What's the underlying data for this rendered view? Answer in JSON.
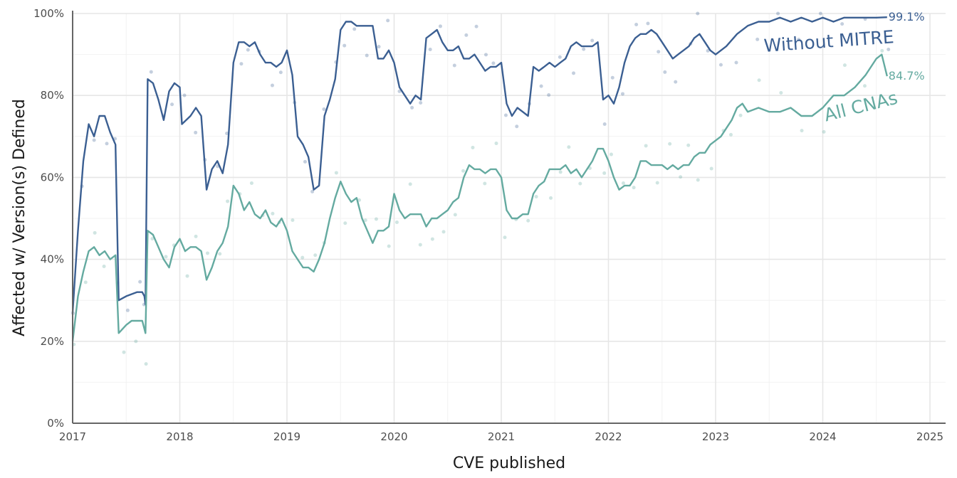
{
  "chart_data": {
    "type": "line",
    "xlabel": "CVE published",
    "ylabel": "Affected w/ Version(s) Defined",
    "xlim": [
      2017,
      2025.2
    ],
    "ylim": [
      0,
      100
    ],
    "x_ticks": [
      "2017",
      "2018",
      "2019",
      "2020",
      "2021",
      "2022",
      "2023",
      "2024",
      "2025"
    ],
    "y_ticks": [
      "0%",
      "20%",
      "40%",
      "60%",
      "80%",
      "100%"
    ],
    "grid": true,
    "legend": "direct labels at line ends",
    "series": [
      {
        "name": "Without MITRE",
        "end_label": "99.1%",
        "color": "#3b5f92",
        "points": [
          [
            2017.0,
            27
          ],
          [
            2017.05,
            47
          ],
          [
            2017.1,
            64
          ],
          [
            2017.15,
            73
          ],
          [
            2017.2,
            70
          ],
          [
            2017.25,
            75
          ],
          [
            2017.3,
            75
          ],
          [
            2017.35,
            71
          ],
          [
            2017.4,
            68
          ],
          [
            2017.43,
            30
          ],
          [
            2017.5,
            31
          ],
          [
            2017.6,
            32
          ],
          [
            2017.65,
            32
          ],
          [
            2017.67,
            31
          ],
          [
            2017.68,
            29
          ],
          [
            2017.7,
            84
          ],
          [
            2017.75,
            83
          ],
          [
            2017.8,
            79
          ],
          [
            2017.85,
            74
          ],
          [
            2017.9,
            81
          ],
          [
            2017.95,
            83
          ],
          [
            2018.0,
            82
          ],
          [
            2018.02,
            73
          ],
          [
            2018.1,
            75
          ],
          [
            2018.15,
            77
          ],
          [
            2018.2,
            75
          ],
          [
            2018.25,
            57
          ],
          [
            2018.3,
            62
          ],
          [
            2018.35,
            64
          ],
          [
            2018.4,
            61
          ],
          [
            2018.45,
            68
          ],
          [
            2018.5,
            88
          ],
          [
            2018.55,
            93
          ],
          [
            2018.6,
            93
          ],
          [
            2018.65,
            92
          ],
          [
            2018.7,
            93
          ],
          [
            2018.75,
            90
          ],
          [
            2018.8,
            88
          ],
          [
            2018.85,
            88
          ],
          [
            2018.9,
            87
          ],
          [
            2018.95,
            88
          ],
          [
            2019.0,
            91
          ],
          [
            2019.05,
            85
          ],
          [
            2019.1,
            70
          ],
          [
            2019.15,
            68
          ],
          [
            2019.2,
            65
          ],
          [
            2019.25,
            57
          ],
          [
            2019.3,
            58
          ],
          [
            2019.35,
            75
          ],
          [
            2019.4,
            79
          ],
          [
            2019.45,
            84
          ],
          [
            2019.5,
            96
          ],
          [
            2019.55,
            98
          ],
          [
            2019.6,
            98
          ],
          [
            2019.65,
            97
          ],
          [
            2019.7,
            97
          ],
          [
            2019.75,
            97
          ],
          [
            2019.8,
            97
          ],
          [
            2019.85,
            89
          ],
          [
            2019.9,
            89
          ],
          [
            2019.95,
            91
          ],
          [
            2020.0,
            88
          ],
          [
            2020.05,
            82
          ],
          [
            2020.1,
            80
          ],
          [
            2020.15,
            78
          ],
          [
            2020.2,
            80
          ],
          [
            2020.25,
            79
          ],
          [
            2020.3,
            94
          ],
          [
            2020.35,
            95
          ],
          [
            2020.4,
            96
          ],
          [
            2020.45,
            93
          ],
          [
            2020.5,
            91
          ],
          [
            2020.55,
            91
          ],
          [
            2020.6,
            92
          ],
          [
            2020.65,
            89
          ],
          [
            2020.7,
            89
          ],
          [
            2020.75,
            90
          ],
          [
            2020.8,
            88
          ],
          [
            2020.85,
            86
          ],
          [
            2020.9,
            87
          ],
          [
            2020.95,
            87
          ],
          [
            2021.0,
            88
          ],
          [
            2021.05,
            78
          ],
          [
            2021.1,
            75
          ],
          [
            2021.15,
            77
          ],
          [
            2021.2,
            76
          ],
          [
            2021.25,
            75
          ],
          [
            2021.3,
            87
          ],
          [
            2021.35,
            86
          ],
          [
            2021.4,
            87
          ],
          [
            2021.45,
            88
          ],
          [
            2021.5,
            87
          ],
          [
            2021.55,
            88
          ],
          [
            2021.6,
            89
          ],
          [
            2021.65,
            92
          ],
          [
            2021.7,
            93
          ],
          [
            2021.75,
            92
          ],
          [
            2021.8,
            92
          ],
          [
            2021.85,
            92
          ],
          [
            2021.9,
            93
          ],
          [
            2021.95,
            79
          ],
          [
            2022.0,
            80
          ],
          [
            2022.05,
            78
          ],
          [
            2022.1,
            82
          ],
          [
            2022.15,
            88
          ],
          [
            2022.2,
            92
          ],
          [
            2022.25,
            94
          ],
          [
            2022.3,
            95
          ],
          [
            2022.35,
            95
          ],
          [
            2022.4,
            96
          ],
          [
            2022.45,
            95
          ],
          [
            2022.5,
            93
          ],
          [
            2022.55,
            91
          ],
          [
            2022.6,
            89
          ],
          [
            2022.65,
            90
          ],
          [
            2022.7,
            91
          ],
          [
            2022.75,
            92
          ],
          [
            2022.8,
            94
          ],
          [
            2022.85,
            95
          ],
          [
            2022.9,
            93
          ],
          [
            2022.95,
            91
          ],
          [
            2023.0,
            90
          ],
          [
            2023.05,
            91
          ],
          [
            2023.1,
            92
          ],
          [
            2023.2,
            95
          ],
          [
            2023.3,
            97
          ],
          [
            2023.4,
            98
          ],
          [
            2023.5,
            98
          ],
          [
            2023.6,
            99
          ],
          [
            2023.7,
            98
          ],
          [
            2023.8,
            99
          ],
          [
            2023.9,
            98
          ],
          [
            2024.0,
            99
          ],
          [
            2024.1,
            98
          ],
          [
            2024.2,
            99
          ],
          [
            2024.3,
            99
          ],
          [
            2024.4,
            99
          ],
          [
            2024.5,
            99
          ],
          [
            2024.6,
            99.1
          ]
        ]
      },
      {
        "name": "All CNAs",
        "end_label": "84.7%",
        "color": "#64aaa0",
        "points": [
          [
            2017.0,
            20
          ],
          [
            2017.05,
            31
          ],
          [
            2017.1,
            37
          ],
          [
            2017.15,
            42
          ],
          [
            2017.2,
            43
          ],
          [
            2017.25,
            41
          ],
          [
            2017.3,
            42
          ],
          [
            2017.35,
            40
          ],
          [
            2017.4,
            41
          ],
          [
            2017.43,
            22
          ],
          [
            2017.5,
            24
          ],
          [
            2017.55,
            25
          ],
          [
            2017.6,
            25
          ],
          [
            2017.65,
            25
          ],
          [
            2017.68,
            22
          ],
          [
            2017.7,
            47
          ],
          [
            2017.75,
            46
          ],
          [
            2017.8,
            43
          ],
          [
            2017.85,
            40
          ],
          [
            2017.9,
            38
          ],
          [
            2017.95,
            43
          ],
          [
            2018.0,
            45
          ],
          [
            2018.05,
            42
          ],
          [
            2018.1,
            43
          ],
          [
            2018.15,
            43
          ],
          [
            2018.2,
            42
          ],
          [
            2018.25,
            35
          ],
          [
            2018.3,
            38
          ],
          [
            2018.35,
            42
          ],
          [
            2018.4,
            44
          ],
          [
            2018.45,
            48
          ],
          [
            2018.5,
            58
          ],
          [
            2018.55,
            56
          ],
          [
            2018.6,
            52
          ],
          [
            2018.65,
            54
          ],
          [
            2018.7,
            51
          ],
          [
            2018.75,
            50
          ],
          [
            2018.8,
            52
          ],
          [
            2018.85,
            49
          ],
          [
            2018.9,
            48
          ],
          [
            2018.95,
            50
          ],
          [
            2019.0,
            47
          ],
          [
            2019.05,
            42
          ],
          [
            2019.1,
            40
          ],
          [
            2019.15,
            38
          ],
          [
            2019.2,
            38
          ],
          [
            2019.25,
            37
          ],
          [
            2019.3,
            40
          ],
          [
            2019.35,
            44
          ],
          [
            2019.4,
            50
          ],
          [
            2019.45,
            55
          ],
          [
            2019.5,
            59
          ],
          [
            2019.55,
            56
          ],
          [
            2019.6,
            54
          ],
          [
            2019.65,
            55
          ],
          [
            2019.7,
            50
          ],
          [
            2019.75,
            47
          ],
          [
            2019.8,
            44
          ],
          [
            2019.85,
            47
          ],
          [
            2019.9,
            47
          ],
          [
            2019.95,
            48
          ],
          [
            2020.0,
            56
          ],
          [
            2020.05,
            52
          ],
          [
            2020.1,
            50
          ],
          [
            2020.15,
            51
          ],
          [
            2020.2,
            51
          ],
          [
            2020.25,
            51
          ],
          [
            2020.3,
            48
          ],
          [
            2020.35,
            50
          ],
          [
            2020.4,
            50
          ],
          [
            2020.45,
            51
          ],
          [
            2020.5,
            52
          ],
          [
            2020.55,
            54
          ],
          [
            2020.6,
            55
          ],
          [
            2020.65,
            60
          ],
          [
            2020.7,
            63
          ],
          [
            2020.75,
            62
          ],
          [
            2020.8,
            62
          ],
          [
            2020.85,
            61
          ],
          [
            2020.9,
            62
          ],
          [
            2020.95,
            62
          ],
          [
            2021.0,
            60
          ],
          [
            2021.05,
            52
          ],
          [
            2021.1,
            50
          ],
          [
            2021.15,
            50
          ],
          [
            2021.2,
            51
          ],
          [
            2021.25,
            51
          ],
          [
            2021.3,
            56
          ],
          [
            2021.35,
            58
          ],
          [
            2021.4,
            59
          ],
          [
            2021.45,
            62
          ],
          [
            2021.5,
            62
          ],
          [
            2021.55,
            62
          ],
          [
            2021.6,
            63
          ],
          [
            2021.65,
            61
          ],
          [
            2021.7,
            62
          ],
          [
            2021.75,
            60
          ],
          [
            2021.8,
            62
          ],
          [
            2021.85,
            64
          ],
          [
            2021.9,
            67
          ],
          [
            2021.95,
            67
          ],
          [
            2022.0,
            64
          ],
          [
            2022.05,
            60
          ],
          [
            2022.1,
            57
          ],
          [
            2022.15,
            58
          ],
          [
            2022.2,
            58
          ],
          [
            2022.25,
            60
          ],
          [
            2022.3,
            64
          ],
          [
            2022.35,
            64
          ],
          [
            2022.4,
            63
          ],
          [
            2022.45,
            63
          ],
          [
            2022.5,
            63
          ],
          [
            2022.55,
            62
          ],
          [
            2022.6,
            63
          ],
          [
            2022.65,
            62
          ],
          [
            2022.7,
            63
          ],
          [
            2022.75,
            63
          ],
          [
            2022.8,
            65
          ],
          [
            2022.85,
            66
          ],
          [
            2022.9,
            66
          ],
          [
            2022.95,
            68
          ],
          [
            2023.0,
            69
          ],
          [
            2023.05,
            70
          ],
          [
            2023.1,
            72
          ],
          [
            2023.15,
            74
          ],
          [
            2023.2,
            77
          ],
          [
            2023.25,
            78
          ],
          [
            2023.3,
            76
          ],
          [
            2023.4,
            77
          ],
          [
            2023.5,
            76
          ],
          [
            2023.6,
            76
          ],
          [
            2023.7,
            77
          ],
          [
            2023.8,
            75
          ],
          [
            2023.9,
            75
          ],
          [
            2024.0,
            77
          ],
          [
            2024.1,
            80
          ],
          [
            2024.2,
            80
          ],
          [
            2024.3,
            82
          ],
          [
            2024.4,
            85
          ],
          [
            2024.5,
            89
          ],
          [
            2024.55,
            90
          ],
          [
            2024.6,
            84.7
          ]
        ]
      }
    ]
  }
}
